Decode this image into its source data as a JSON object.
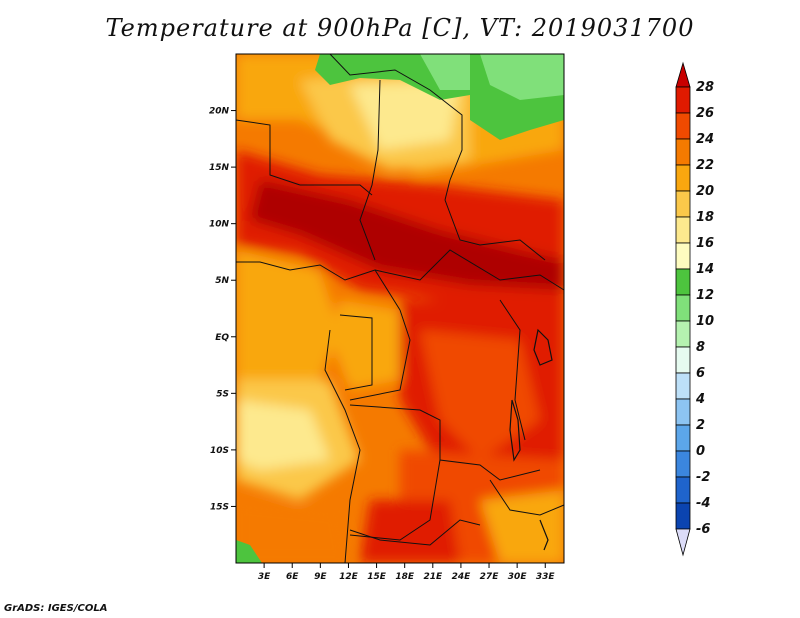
{
  "title": "Temperature at 900hPa [C], VT: 2019031700",
  "credit": "GrADS: IGES/COLA",
  "chart_data": {
    "type": "heatmap",
    "title": "Temperature at 900hPa [C], VT: 2019031700",
    "variable": "Temperature at 900hPa",
    "units": "C",
    "valid_time": "2019031700",
    "x_ticks": [
      "3E",
      "6E",
      "9E",
      "12E",
      "15E",
      "18E",
      "21E",
      "24E",
      "27E",
      "30E",
      "33E"
    ],
    "x_tick_values": [
      3,
      6,
      9,
      12,
      15,
      18,
      21,
      24,
      27,
      30,
      33
    ],
    "y_ticks": [
      "20N",
      "15N",
      "10N",
      "5N",
      "EQ",
      "5S",
      "10S",
      "15S"
    ],
    "y_tick_values": [
      20,
      15,
      10,
      5,
      0,
      -5,
      -10,
      -15
    ],
    "xlim": [
      0,
      35
    ],
    "ylim": [
      -20,
      25
    ],
    "colorbar": {
      "levels": [
        "28",
        "26",
        "24",
        "22",
        "20",
        "18",
        "16",
        "14",
        "12",
        "10",
        "8",
        "6",
        "4",
        "2",
        "0",
        "-2",
        "-4",
        "-6"
      ],
      "colors": [
        "#a50000",
        "#e01a00",
        "#f04a00",
        "#f57a00",
        "#f9a70f",
        "#fbc84a",
        "#fde98e",
        "#fefcc0",
        "#4dc43e",
        "#80e07a",
        "#b5f2b0",
        "#e6fbf0",
        "#bde0f8",
        "#8dc4f2",
        "#5ca6ea",
        "#3b86de",
        "#1f64cc",
        "#0b44b0",
        "#00248a",
        "#0a0a5a"
      ],
      "bottom_extend_color": "#dcdcf8"
    }
  }
}
